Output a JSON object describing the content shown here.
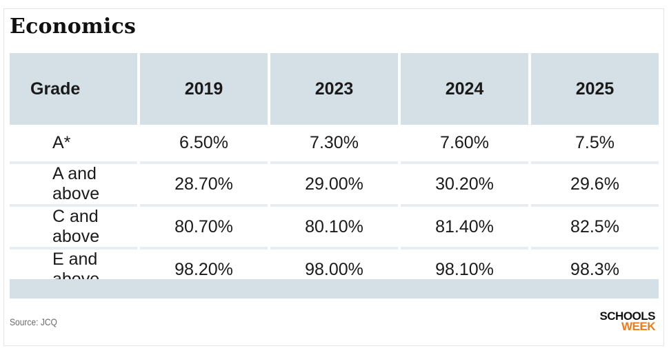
{
  "title": "Economics",
  "chart_data": {
    "type": "table",
    "title": "Economics",
    "columns": [
      "Grade",
      "2019",
      "2023",
      "2024",
      "2025"
    ],
    "rows": [
      [
        "A*",
        "6.50%",
        "7.30%",
        "7.60%",
        "7.5%"
      ],
      [
        "A and above",
        "28.70%",
        "29.00%",
        "30.20%",
        "29.6%"
      ],
      [
        "C and above",
        "80.70%",
        "80.10%",
        "81.40%",
        "82.5%"
      ],
      [
        "E and above",
        "98.20%",
        "98.00%",
        "98.10%",
        "98.3%"
      ]
    ]
  },
  "source": "Source: JCQ",
  "logo": {
    "line1": "SCHOOLS",
    "line2": "WEEK"
  }
}
